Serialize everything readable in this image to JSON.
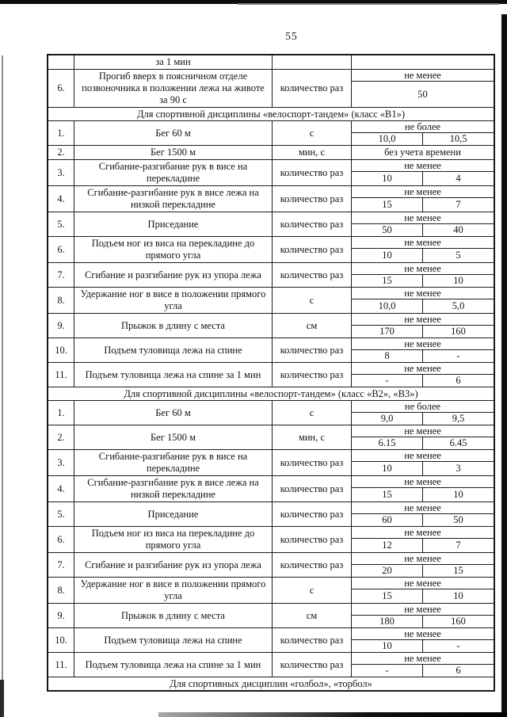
{
  "page": {
    "number": "55"
  },
  "table": {
    "sections": [
      {
        "header": null,
        "rows": [
          {
            "variant": "cont",
            "num": "",
            "name": "за 1 мин",
            "unit": "",
            "limit": "",
            "v1": "",
            "v2": ""
          },
          {
            "variant": "one-span",
            "num": "6.",
            "name": "Прогиб вверх в поясничном отделе позвоночника в положении лежа на животе за 90 с",
            "unit": "количество раз",
            "limit": "не менее",
            "v1": "50",
            "v2": ""
          }
        ]
      },
      {
        "header": "Для спортивной дисциплины «велоспорт-тандем» (класс «В1»)",
        "rows": [
          {
            "variant": "two",
            "num": "1.",
            "name": "Бег 60 м",
            "unit": "с",
            "limit": "не более",
            "v1": "10,0",
            "v2": "10,5"
          },
          {
            "variant": "limit-only",
            "num": "2.",
            "name": "Бег 1500 м",
            "unit": "мин, с",
            "limit": "без учета времени",
            "v1": "",
            "v2": ""
          },
          {
            "variant": "two",
            "num": "3.",
            "name": "Сгибание-разгибание рук в висе на перекладине",
            "unit": "количество раз",
            "limit": "не менее",
            "v1": "10",
            "v2": "4"
          },
          {
            "variant": "two",
            "num": "4.",
            "name": "Сгибание-разгибание рук в висе лежа на низкой перекладине",
            "unit": "количество раз",
            "limit": "не менее",
            "v1": "15",
            "v2": "7"
          },
          {
            "variant": "two",
            "num": "5.",
            "name": "Приседание",
            "unit": "количество раз",
            "limit": "не менее",
            "v1": "50",
            "v2": "40"
          },
          {
            "variant": "two",
            "num": "6.",
            "name": "Подъем ног из виса на перекладине до прямого угла",
            "unit": "количество раз",
            "limit": "не менее",
            "v1": "10",
            "v2": "5"
          },
          {
            "variant": "two",
            "num": "7.",
            "name": "Сгибание и разгибание рук из упора лежа",
            "unit": "количество раз",
            "limit": "не менее",
            "v1": "15",
            "v2": "10"
          },
          {
            "variant": "two",
            "num": "8.",
            "name": "Удержание ног в висе в положении прямого угла",
            "unit": "с",
            "limit": "не менее",
            "v1": "10,0",
            "v2": "5,0"
          },
          {
            "variant": "two",
            "num": "9.",
            "name": "Прыжок в длину с места",
            "unit": "см",
            "limit": "не менее",
            "v1": "170",
            "v2": "160"
          },
          {
            "variant": "two",
            "num": "10.",
            "name": "Подъем туловища лежа на спине",
            "unit": "количество раз",
            "limit": "не менее",
            "v1": "8",
            "v2": "-"
          },
          {
            "variant": "two",
            "num": "11.",
            "name": "Подъем туловища лежа на спине за 1 мин",
            "unit": "количество раз",
            "limit": "не менее",
            "v1": "-",
            "v2": "6"
          }
        ]
      },
      {
        "header": "Для спортивной дисциплины «велоспорт-тандем» (класс «В2», «В3»)",
        "rows": [
          {
            "variant": "two",
            "num": "1.",
            "name": "Бег 60 м",
            "unit": "с",
            "limit": "не более",
            "v1": "9,0",
            "v2": "9,5"
          },
          {
            "variant": "two",
            "num": "2.",
            "name": "Бег 1500 м",
            "unit": "мин, с",
            "limit": "не менее",
            "v1": "6.15",
            "v2": "6.45"
          },
          {
            "variant": "two",
            "num": "3.",
            "name": "Сгибание-разгибание рук в висе на перекладине",
            "unit": "количество раз",
            "limit": "не менее",
            "v1": "10",
            "v2": "3"
          },
          {
            "variant": "two",
            "num": "4.",
            "name": "Сгибание-разгибание рук в висе лежа на низкой перекладине",
            "unit": "количество раз",
            "limit": "не менее",
            "v1": "15",
            "v2": "10"
          },
          {
            "variant": "two",
            "num": "5.",
            "name": "Приседание",
            "unit": "количество раз",
            "limit": "не менее",
            "v1": "60",
            "v2": "50"
          },
          {
            "variant": "two",
            "num": "6.",
            "name": "Подъем ног из виса на перекладине до прямого угла",
            "unit": "количество раз",
            "limit": "не менее",
            "v1": "12",
            "v2": "7"
          },
          {
            "variant": "two",
            "num": "7.",
            "name": "Сгибание и разгибание рук из упора лежа",
            "unit": "количество раз",
            "limit": "не менее",
            "v1": "20",
            "v2": "15"
          },
          {
            "variant": "two",
            "num": "8.",
            "name": "Удержание ног в висе в положении прямого угла",
            "unit": "с",
            "limit": "не менее",
            "v1": "15",
            "v2": "10"
          },
          {
            "variant": "two",
            "num": "9.",
            "name": "Прыжок в длину с места",
            "unit": "см",
            "limit": "не менее",
            "v1": "180",
            "v2": "160"
          },
          {
            "variant": "two",
            "num": "10.",
            "name": "Подъем туловища лежа на спине",
            "unit": "количество раз",
            "limit": "не менее",
            "v1": "10",
            "v2": "-"
          },
          {
            "variant": "two",
            "num": "11.",
            "name": "Подъем туловища лежа на спине за 1 мин",
            "unit": "количество раз",
            "limit": "не менее",
            "v1": "-",
            "v2": "6"
          }
        ]
      },
      {
        "header": "Для спортивных дисциплин «голбол», «торбол»",
        "rows": []
      }
    ]
  }
}
